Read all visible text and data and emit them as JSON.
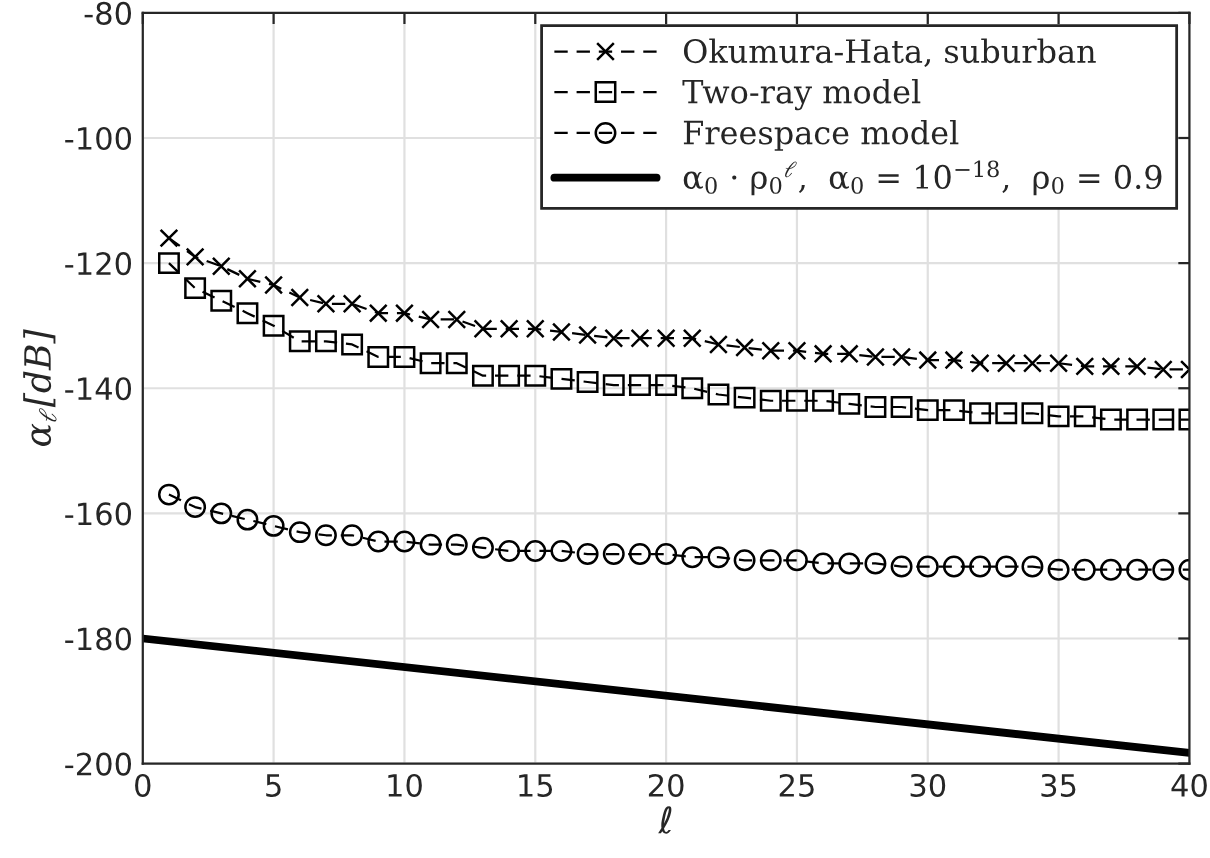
{
  "chart_data": {
    "type": "line",
    "xlabel": "ℓ",
    "ylabel": "α$_{ℓ}$[dB]",
    "xlim": [
      0,
      40
    ],
    "ylim": [
      -200,
      -80
    ],
    "xticks": [
      0,
      5,
      10,
      15,
      20,
      25,
      30,
      35,
      40
    ],
    "yticks": [
      -200,
      -180,
      -160,
      -140,
      -120,
      -100,
      -80
    ],
    "grid": true,
    "legend": "top right",
    "x": [
      1,
      2,
      3,
      4,
      5,
      6,
      7,
      8,
      9,
      10,
      11,
      12,
      13,
      14,
      15,
      16,
      17,
      18,
      19,
      20,
      21,
      22,
      23,
      24,
      25,
      26,
      27,
      28,
      29,
      30,
      31,
      32,
      33,
      34,
      35,
      36,
      37,
      38,
      39,
      40
    ],
    "series": [
      {
        "name": "Okumura-Hata, suburban",
        "color": "#000000",
        "marker": "cross",
        "line_style": "dashed",
        "values": [
          -116,
          -119,
          -120.5,
          -122.5,
          -123.5,
          -125.5,
          -126.5,
          -126.5,
          -128,
          -128,
          -129,
          -129,
          -130.5,
          -130.5,
          -130.5,
          -131,
          -131.5,
          -132,
          -132,
          -132,
          -132,
          -133,
          -133.5,
          -134,
          -134,
          -134.5,
          -134.5,
          -135,
          -135,
          -135.5,
          -135.5,
          -136,
          -136,
          -136,
          -136,
          -136.5,
          -136.5,
          -136.5,
          -137,
          -137
        ]
      },
      {
        "name": "Two-ray model",
        "color": "#000000",
        "marker": "square",
        "line_style": "dashed",
        "values": [
          -120,
          -124,
          -126,
          -128,
          -130,
          -132.5,
          -132.5,
          -133,
          -135,
          -135,
          -136,
          -136,
          -138,
          -138,
          -138,
          -138.5,
          -139,
          -139.5,
          -139.5,
          -139.5,
          -140,
          -141,
          -141.5,
          -142,
          -142,
          -142,
          -142.5,
          -143,
          -143,
          -143.5,
          -143.5,
          -144,
          -144,
          -144,
          -144.5,
          -144.5,
          -145,
          -145,
          -145,
          -145
        ]
      },
      {
        "name": "Freespace model",
        "color": "#000000",
        "marker": "circle",
        "line_style": "dashed",
        "values": [
          -157,
          -159,
          -160,
          -161,
          -162,
          -163,
          -163.5,
          -163.5,
          -164.5,
          -164.5,
          -165,
          -165,
          -165.5,
          -166,
          -166,
          -166,
          -166.5,
          -166.5,
          -166.5,
          -166.5,
          -167,
          -167,
          -167.5,
          -167.5,
          -167.5,
          -168,
          -168,
          -168,
          -168.5,
          -168.5,
          -168.5,
          -168.5,
          -168.5,
          -168.5,
          -169,
          -169,
          -169,
          -169,
          -169,
          -169
        ]
      },
      {
        "name": "α$_{0}$ · ρ$_{0}$$^{ℓ}$,  α$_{0}$ = 10$^{−18}$,  ρ$_{0}$ = 0.9",
        "color": "#000000",
        "marker": "none",
        "line_style": "solid",
        "x": [
          0,
          40
        ],
        "values": [
          -180,
          -198.3
        ]
      }
    ]
  }
}
